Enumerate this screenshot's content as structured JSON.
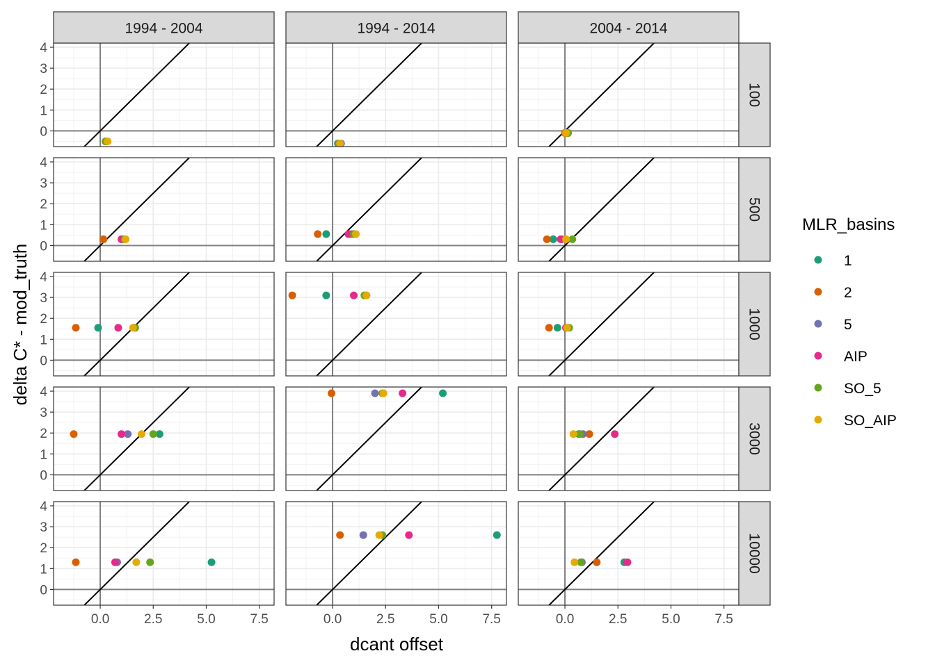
{
  "chart_data": {
    "type": "scatter",
    "facet_columns": [
      "1994 - 2004",
      "1994 - 2014",
      "2004 - 2014"
    ],
    "facet_rows": [
      "100",
      "500",
      "1000",
      "3000",
      "10000"
    ],
    "xlabel": "dcant offset",
    "ylabel": "delta C* - mod_truth",
    "xlim": [
      -2.2,
      8.2
    ],
    "ylim": [
      -0.75,
      4.2
    ],
    "x_ticks": [
      0,
      2.5,
      5,
      7.5
    ],
    "x_tick_labels": [
      "0.0",
      "2.5",
      "5.0",
      "7.5"
    ],
    "y_ticks": [
      0,
      1,
      2,
      3,
      4
    ],
    "y_tick_labels": [
      "0",
      "1",
      "2",
      "3",
      "4"
    ],
    "reference_lines": [
      "x = 0",
      "y = 0",
      "y = x"
    ],
    "grid": true,
    "legend": {
      "title": "MLR_basins",
      "position": "right",
      "entries": [
        {
          "label": "1",
          "color": "#1b9e77"
        },
        {
          "label": "2",
          "color": "#d95f02"
        },
        {
          "label": "5",
          "color": "#7570b3"
        },
        {
          "label": "AIP",
          "color": "#e7298a"
        },
        {
          "label": "SO_5",
          "color": "#66a61e"
        },
        {
          "label": "SO_AIP",
          "color": "#e6ab02"
        }
      ]
    },
    "panels": [
      {
        "column": "1994 - 2004",
        "row": "100",
        "y": -0.5,
        "points": [
          {
            "basin": "1",
            "x": 0.25
          },
          {
            "basin": "2",
            "x": 0.28
          },
          {
            "basin": "5",
            "x": 0.3
          },
          {
            "basin": "AIP",
            "x": 0.3
          },
          {
            "basin": "SO_5",
            "x": 0.25
          },
          {
            "basin": "SO_AIP",
            "x": 0.35
          }
        ]
      },
      {
        "column": "1994 - 2014",
        "row": "100",
        "y": -0.6,
        "points": [
          {
            "basin": "1",
            "x": 0.25
          },
          {
            "basin": "2",
            "x": 0.3
          },
          {
            "basin": "5",
            "x": 0.4
          },
          {
            "basin": "AIP",
            "x": 0.3
          },
          {
            "basin": "SO_5",
            "x": 0.3
          },
          {
            "basin": "SO_AIP",
            "x": 0.35
          }
        ]
      },
      {
        "column": "2004 - 2014",
        "row": "100",
        "y": -0.1,
        "points": [
          {
            "basin": "1",
            "x": 0.1
          },
          {
            "basin": "2",
            "x": 0.0
          },
          {
            "basin": "5",
            "x": 0.1
          },
          {
            "basin": "AIP",
            "x": 0.05
          },
          {
            "basin": "SO_5",
            "x": 0.15
          },
          {
            "basin": "SO_AIP",
            "x": 0.05
          }
        ]
      },
      {
        "column": "1994 - 2004",
        "row": "500",
        "y": 0.3,
        "points": [
          {
            "basin": "1",
            "x": 0.15
          },
          {
            "basin": "2",
            "x": 0.15
          },
          {
            "basin": "5",
            "x": 1.1
          },
          {
            "basin": "AIP",
            "x": 1.0
          },
          {
            "basin": "SO_5",
            "x": 1.15
          },
          {
            "basin": "SO_AIP",
            "x": 1.2
          }
        ]
      },
      {
        "column": "1994 - 2014",
        "row": "500",
        "y": 0.55,
        "points": [
          {
            "basin": "1",
            "x": -0.3
          },
          {
            "basin": "2",
            "x": -0.7
          },
          {
            "basin": "5",
            "x": 0.9
          },
          {
            "basin": "AIP",
            "x": 0.75
          },
          {
            "basin": "SO_5",
            "x": 1.0
          },
          {
            "basin": "SO_AIP",
            "x": 1.1
          }
        ]
      },
      {
        "column": "2004 - 2014",
        "row": "500",
        "y": 0.3,
        "points": [
          {
            "basin": "1",
            "x": -0.55
          },
          {
            "basin": "2",
            "x": -0.85
          },
          {
            "basin": "5",
            "x": -0.15
          },
          {
            "basin": "AIP",
            "x": -0.2
          },
          {
            "basin": "SO_5",
            "x": 0.35
          },
          {
            "basin": "SO_AIP",
            "x": 0.05
          }
        ]
      },
      {
        "column": "1994 - 2004",
        "row": "1000",
        "y": 1.55,
        "points": [
          {
            "basin": "1",
            "x": -0.1
          },
          {
            "basin": "2",
            "x": -1.15
          },
          {
            "basin": "5",
            "x": 1.6
          },
          {
            "basin": "AIP",
            "x": 0.85
          },
          {
            "basin": "SO_5",
            "x": 1.65
          },
          {
            "basin": "SO_AIP",
            "x": 1.55
          }
        ]
      },
      {
        "column": "1994 - 2014",
        "row": "1000",
        "y": 3.1,
        "points": [
          {
            "basin": "1",
            "x": -0.3
          },
          {
            "basin": "2",
            "x": -1.9
          },
          {
            "basin": "5",
            "x": 1.6
          },
          {
            "basin": "AIP",
            "x": 1.0
          },
          {
            "basin": "SO_5",
            "x": 1.5
          },
          {
            "basin": "SO_AIP",
            "x": 1.6
          }
        ]
      },
      {
        "column": "2004 - 2014",
        "row": "1000",
        "y": 1.55,
        "points": [
          {
            "basin": "1",
            "x": -0.35
          },
          {
            "basin": "2",
            "x": -0.75
          },
          {
            "basin": "5",
            "x": 0.05
          },
          {
            "basin": "AIP",
            "x": 0.05
          },
          {
            "basin": "SO_5",
            "x": 0.2
          },
          {
            "basin": "SO_AIP",
            "x": 0.1
          }
        ]
      },
      {
        "column": "1994 - 2004",
        "row": "3000",
        "y": 1.95,
        "points": [
          {
            "basin": "1",
            "x": 2.8
          },
          {
            "basin": "2",
            "x": -1.25
          },
          {
            "basin": "5",
            "x": 1.3
          },
          {
            "basin": "AIP",
            "x": 1.0
          },
          {
            "basin": "SO_5",
            "x": 2.5
          },
          {
            "basin": "SO_AIP",
            "x": 1.95
          }
        ]
      },
      {
        "column": "1994 - 2014",
        "row": "3000",
        "y": 3.9,
        "points": [
          {
            "basin": "1",
            "x": 5.2
          },
          {
            "basin": "2",
            "x": -0.05
          },
          {
            "basin": "5",
            "x": 2.0
          },
          {
            "basin": "AIP",
            "x": 3.3
          },
          {
            "basin": "SO_5",
            "x": 2.35
          },
          {
            "basin": "SO_AIP",
            "x": 2.4
          }
        ]
      },
      {
        "column": "2004 - 2014",
        "row": "3000",
        "y": 1.95,
        "points": [
          {
            "basin": "1",
            "x": 0.65
          },
          {
            "basin": "2",
            "x": 1.15
          },
          {
            "basin": "5",
            "x": 0.85
          },
          {
            "basin": "AIP",
            "x": 2.35
          },
          {
            "basin": "SO_5",
            "x": 0.7
          },
          {
            "basin": "SO_AIP",
            "x": 0.4
          }
        ]
      },
      {
        "column": "1994 - 2004",
        "row": "10000",
        "y": 1.3,
        "points": [
          {
            "basin": "1",
            "x": 5.25
          },
          {
            "basin": "2",
            "x": -1.15
          },
          {
            "basin": "5",
            "x": 0.8
          },
          {
            "basin": "AIP",
            "x": 0.7
          },
          {
            "basin": "SO_5",
            "x": 2.35
          },
          {
            "basin": "SO_AIP",
            "x": 1.7
          }
        ]
      },
      {
        "column": "1994 - 2014",
        "row": "10000",
        "y": 2.6,
        "points": [
          {
            "basin": "1",
            "x": 7.75
          },
          {
            "basin": "2",
            "x": 0.35
          },
          {
            "basin": "5",
            "x": 1.45
          },
          {
            "basin": "AIP",
            "x": 3.6
          },
          {
            "basin": "SO_5",
            "x": 2.35
          },
          {
            "basin": "SO_AIP",
            "x": 2.2
          }
        ]
      },
      {
        "column": "2004 - 2014",
        "row": "10000",
        "y": 1.3,
        "points": [
          {
            "basin": "1",
            "x": 2.8
          },
          {
            "basin": "2",
            "x": 1.5
          },
          {
            "basin": "5",
            "x": 0.8
          },
          {
            "basin": "AIP",
            "x": 2.95
          },
          {
            "basin": "SO_5",
            "x": 0.75
          },
          {
            "basin": "SO_AIP",
            "x": 0.45
          }
        ]
      }
    ]
  }
}
